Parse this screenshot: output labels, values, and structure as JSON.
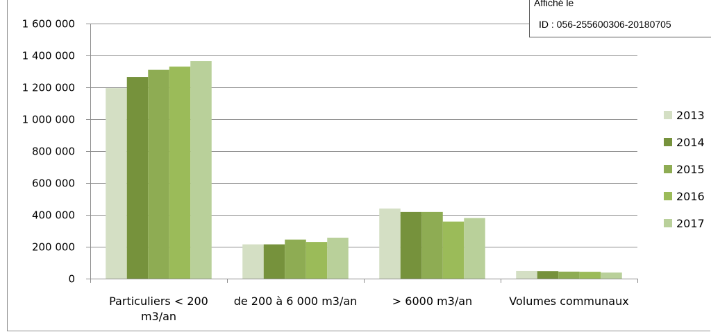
{
  "chart_data": {
    "type": "bar",
    "title": "",
    "xlabel": "",
    "ylabel": "",
    "categories": [
      "Particuliers < 200 m3/an",
      "de 200 à 6 000 m3/an",
      "> 6000 m3/an",
      "Volumes communaux"
    ],
    "category_label_lines": [
      [
        "Particuliers      < 200",
        "m3/an"
      ],
      [
        "de 200 à 6 000 m3/an"
      ],
      [
        "> 6000 m3/an"
      ],
      [
        "Volumes communaux"
      ]
    ],
    "series": [
      {
        "name": "2013",
        "color": "#d4dfc4",
        "values": [
          1195000,
          215000,
          440000,
          48000
        ]
      },
      {
        "name": "2014",
        "color": "#76923c",
        "values": [
          1265000,
          215000,
          418000,
          47000
        ]
      },
      {
        "name": "2015",
        "color": "#8eac53",
        "values": [
          1310000,
          245000,
          418000,
          44000
        ]
      },
      {
        "name": "2016",
        "color": "#9bbb59",
        "values": [
          1330000,
          230000,
          358000,
          43000
        ]
      },
      {
        "name": "2017",
        "color": "#b9d09a",
        "values": [
          1365000,
          257000,
          380000,
          38000
        ]
      }
    ],
    "ylim": [
      0,
      1600000
    ],
    "yticks": [
      0,
      200000,
      400000,
      600000,
      800000,
      1000000,
      1200000,
      1400000,
      1600000
    ],
    "ytick_labels": [
      "0",
      "200 000",
      "400 000",
      "600 000",
      "800 000",
      "1 000 000",
      "1 200 000",
      "1 400 000",
      "1 600 000"
    ],
    "grid": true,
    "legend_position": "right"
  },
  "stamp": {
    "line1": "Affiché le",
    "line2": "ID : 056-255600306-20180705"
  }
}
